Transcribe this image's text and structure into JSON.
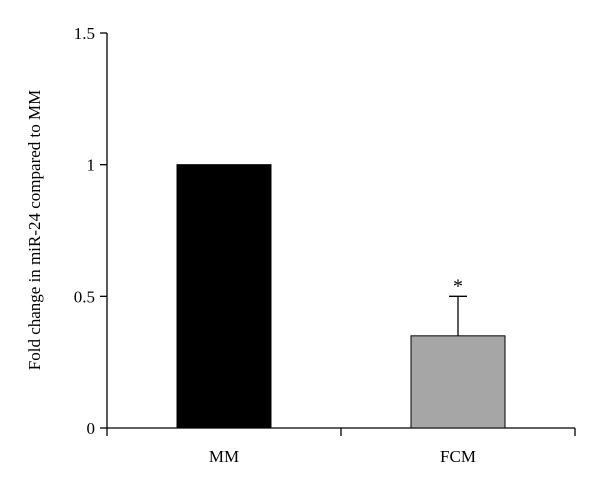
{
  "chart_data": {
    "type": "bar",
    "categories": [
      "MM",
      "FCM"
    ],
    "values": [
      1.0,
      0.35
    ],
    "error_bars": [
      0.0,
      0.15
    ],
    "bar_colors": [
      "#000000",
      "#a6a6a6"
    ],
    "title": "",
    "xlabel": "",
    "ylabel": "Fold change in miR-24 compared to MM",
    "ylim": [
      0,
      1.5
    ],
    "yticks": [
      "0",
      "0.5",
      "1",
      "1.5"
    ],
    "annotations": [
      {
        "category": "FCM",
        "text": "*"
      }
    ],
    "grid": false,
    "legend": "none"
  }
}
